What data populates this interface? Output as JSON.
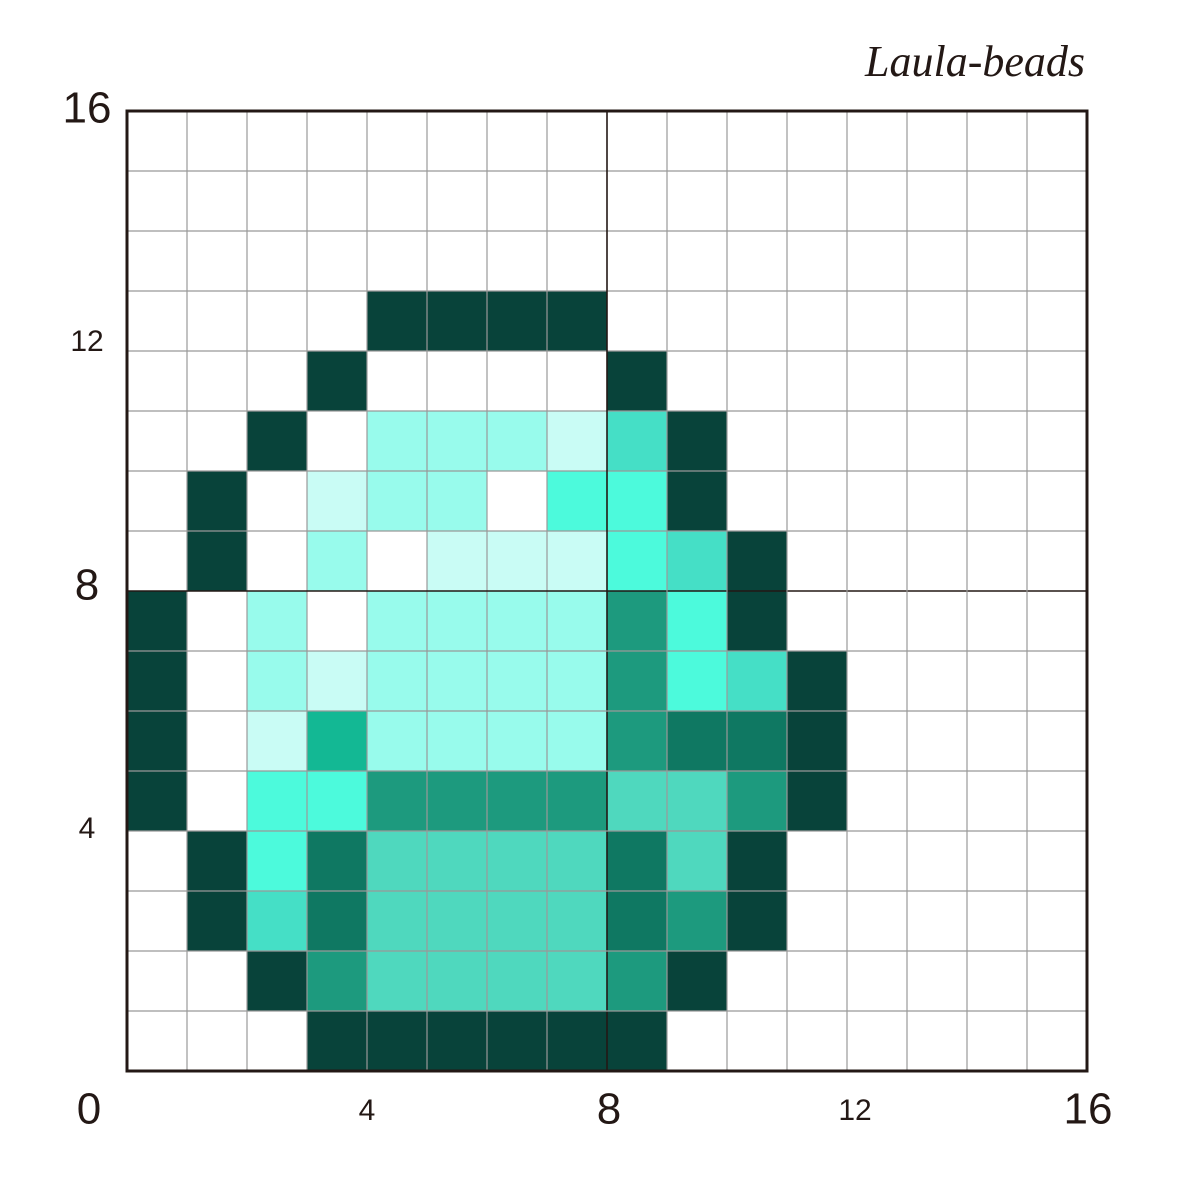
{
  "brand": "Laula-beads",
  "x_labels": [
    "0",
    "4",
    "8",
    "12",
    "16"
  ],
  "y_labels": [
    "16",
    "12",
    "8",
    "4"
  ],
  "palette": {
    "W": "#ffffff",
    "D": "#08433a",
    "L": "#98fbec",
    "V": "#c9fcf5",
    "M": "#45dfc6",
    "B": "#4cfadc",
    "T": "#1d9a7e",
    "K": "#0f7862",
    "G": "#13b894",
    "S": "#4fd8be"
  },
  "cells": [
    "WWWWWWWWWWWWWWWW",
    "WWWWWWWWWWWWWWWW",
    "WWWWWWWWWWWWWWWW",
    "WWWWDDDDWWWWWWWW",
    "WWWDWWWWDWWWWWWW",
    "WWDWLLLVMDWWWWWW",
    "WDWVLLWBBDWWWWWW",
    "WDWLWVVVBMDWWWWW",
    "DWLWLLLLTBDWWWWW",
    "DWLVLLLLTBMDWWWW",
    "DWVGLLLLTKKDWWWW",
    "DWBBTTTTSSTDWWWW",
    "WDBKSSSSKSDWWWWW",
    "WDMKSSSSKTDWWWWW",
    "WWDTSSSSTDWWWWWW",
    "WWWDDDDDDWWWWWWW"
  ]
}
